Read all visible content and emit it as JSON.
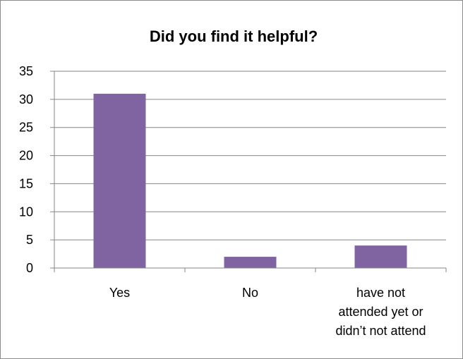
{
  "chart_data": {
    "type": "bar",
    "title": "Did you find it helpful?",
    "xlabel": "",
    "ylabel": "",
    "categories": [
      [
        "Yes"
      ],
      [
        "No"
      ],
      [
        "have not",
        "attended yet or",
        "didn’t not attend"
      ]
    ],
    "values": [
      31,
      2,
      4
    ],
    "ylim": [
      0,
      35
    ],
    "yticks": [
      0,
      5,
      10,
      15,
      20,
      25,
      30,
      35
    ],
    "grid": true,
    "legend": "none",
    "bar_color": "#8064A2",
    "grid_color": "#868686"
  }
}
